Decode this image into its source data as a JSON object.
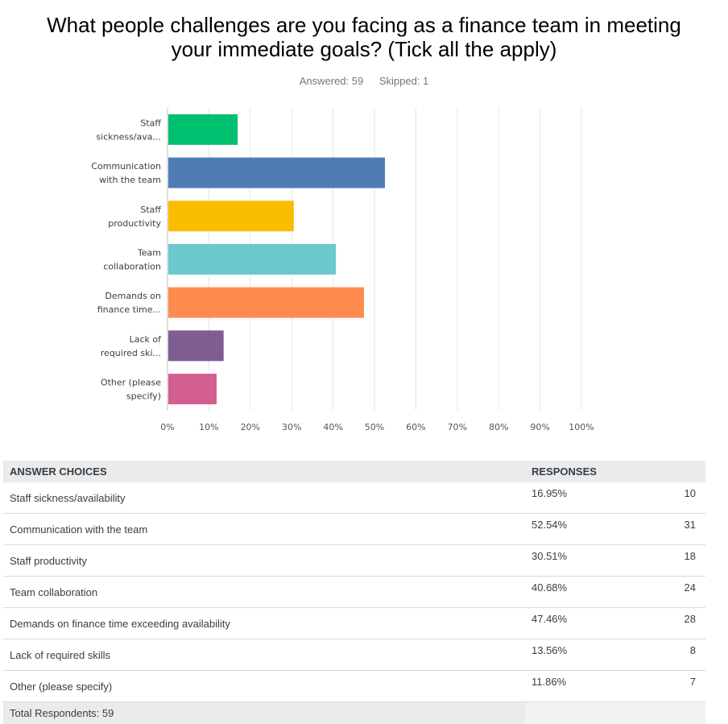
{
  "title": "What people challenges are you facing as a finance team in meeting your immediate goals? (Tick all the apply)",
  "meta": {
    "answered": "Answered: 59",
    "skipped": "Skipped: 1"
  },
  "chart_data": {
    "type": "bar",
    "orientation": "horizontal",
    "categories": [
      [
        "Staff",
        "sickness/ava..."
      ],
      [
        "Communication",
        "with the team"
      ],
      [
        "Staff",
        "productivity"
      ],
      [
        "Team",
        "collaboration"
      ],
      [
        "Demands on",
        "finance time..."
      ],
      [
        "Lack of",
        "required ski..."
      ],
      [
        "Other (please",
        "specify)"
      ]
    ],
    "values": [
      16.95,
      52.54,
      30.51,
      40.68,
      47.46,
      13.56,
      11.86
    ],
    "colors": [
      "#00bf6f",
      "#507cb6",
      "#f9be00",
      "#6bc8cd",
      "#ff8b4f",
      "#7f5c91",
      "#d25f90"
    ],
    "xlim": [
      0,
      100
    ],
    "ticks": [
      "0%",
      "10%",
      "20%",
      "30%",
      "40%",
      "50%",
      "60%",
      "70%",
      "80%",
      "90%",
      "100%"
    ],
    "grid": true
  },
  "table": {
    "headers": {
      "choice": "ANSWER CHOICES",
      "responses": "RESPONSES"
    },
    "rows": [
      {
        "choice": "Staff sickness/availability",
        "percent": "16.95%",
        "count": "10"
      },
      {
        "choice": "Communication with the team",
        "percent": "52.54%",
        "count": "31"
      },
      {
        "choice": "Staff productivity",
        "percent": "30.51%",
        "count": "18"
      },
      {
        "choice": "Team collaboration",
        "percent": "40.68%",
        "count": "24"
      },
      {
        "choice": "Demands on finance time exceeding availability",
        "percent": "47.46%",
        "count": "28"
      },
      {
        "choice": "Lack of required skills",
        "percent": "13.56%",
        "count": "8"
      },
      {
        "choice": "Other (please specify)",
        "percent": "11.86%",
        "count": "7"
      }
    ],
    "total": "Total Respondents: 59"
  }
}
